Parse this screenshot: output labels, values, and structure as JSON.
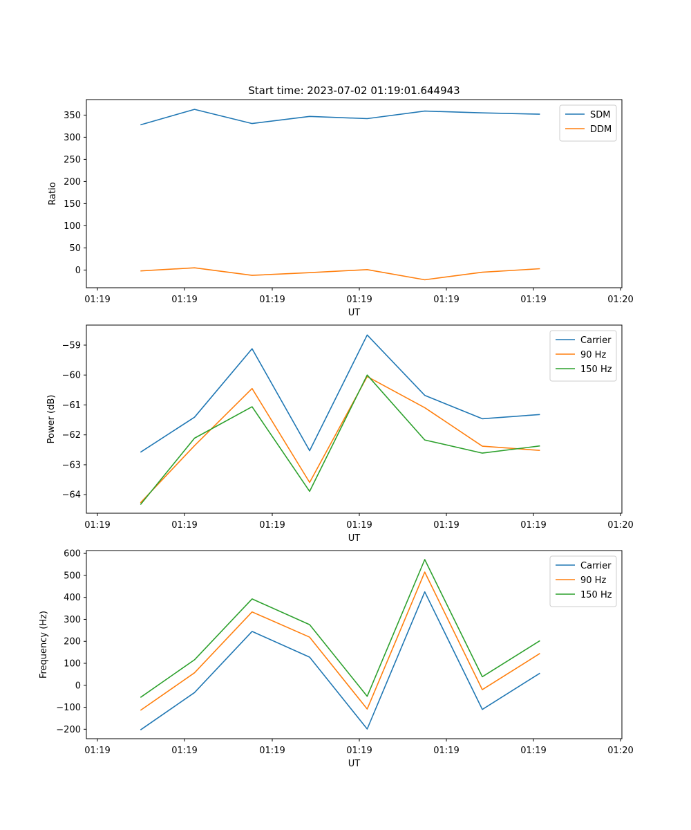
{
  "chart_data": [
    {
      "type": "line",
      "title": "Start time: 2023-07-02 01:19:01.644943",
      "xlabel": "UT",
      "ylabel": "Ratio",
      "x_tick_labels": [
        "01:19",
        "01:19",
        "01:19",
        "01:19",
        "01:19",
        "01:19",
        "01:19",
        "01:20"
      ],
      "ylim": [
        -40,
        385
      ],
      "y_ticks": [
        0,
        50,
        100,
        150,
        200,
        250,
        300,
        350
      ],
      "legend": "top-right",
      "x": [
        0.5,
        1.12,
        1.78,
        2.44,
        3.1,
        3.76,
        4.42,
        5.08
      ],
      "xlim": [
        -0.12,
        6.02
      ],
      "series": [
        {
          "name": "SDM",
          "color": "#1f77b4",
          "values": [
            328,
            363,
            331,
            347,
            342,
            359,
            355,
            352
          ]
        },
        {
          "name": "DDM",
          "color": "#ff7f0e",
          "values": [
            -2,
            5,
            -12,
            -6,
            1,
            -22,
            -5,
            3
          ]
        }
      ]
    },
    {
      "type": "line",
      "title": "",
      "xlabel": "UT",
      "ylabel": "Power (dB)",
      "x_tick_labels": [
        "01:19",
        "01:19",
        "01:19",
        "01:19",
        "01:19",
        "01:19",
        "01:19",
        "01:20"
      ],
      "ylim": [
        -64.62,
        -58.33
      ],
      "y_ticks": [
        -64,
        -63,
        -62,
        -61,
        -60,
        -59
      ],
      "legend": "top-right",
      "x": [
        0.5,
        1.12,
        1.78,
        2.44,
        3.1,
        3.76,
        4.42,
        5.08
      ],
      "xlim": [
        -0.12,
        6.02
      ],
      "series": [
        {
          "name": "Carrier",
          "color": "#1f77b4",
          "values": [
            -62.58,
            -61.41,
            -59.12,
            -62.53,
            -58.66,
            -60.68,
            -61.46,
            -61.32
          ]
        },
        {
          "name": "90 Hz",
          "color": "#ff7f0e",
          "values": [
            -64.27,
            -62.36,
            -60.45,
            -63.59,
            -60.05,
            -61.09,
            -62.38,
            -62.52
          ]
        },
        {
          "name": "150 Hz",
          "color": "#2ca02c",
          "values": [
            -64.33,
            -62.11,
            -61.06,
            -63.89,
            -60.0,
            -62.17,
            -62.61,
            -62.37
          ]
        }
      ]
    },
    {
      "type": "line",
      "title": "",
      "xlabel": "UT",
      "ylabel": "Frequency (Hz)",
      "x_tick_labels": [
        "01:19",
        "01:19",
        "01:19",
        "01:19",
        "01:19",
        "01:19",
        "01:19",
        "01:20"
      ],
      "ylim": [
        -243,
        613
      ],
      "y_ticks": [
        -200,
        -100,
        0,
        100,
        200,
        300,
        400,
        500,
        600
      ],
      "legend": "top-right",
      "x": [
        0.5,
        1.12,
        1.78,
        2.44,
        3.1,
        3.76,
        4.42,
        5.08
      ],
      "xlim": [
        -0.12,
        6.02
      ],
      "series": [
        {
          "name": "Carrier",
          "color": "#1f77b4",
          "values": [
            -203,
            -33,
            245,
            128,
            -199,
            425,
            -110,
            55
          ]
        },
        {
          "name": "90 Hz",
          "color": "#ff7f0e",
          "values": [
            -114,
            57,
            334,
            219,
            -108,
            515,
            -20,
            145
          ]
        },
        {
          "name": "150 Hz",
          "color": "#2ca02c",
          "values": [
            -55,
            116,
            393,
            276,
            -50,
            572,
            39,
            203
          ]
        }
      ]
    }
  ]
}
